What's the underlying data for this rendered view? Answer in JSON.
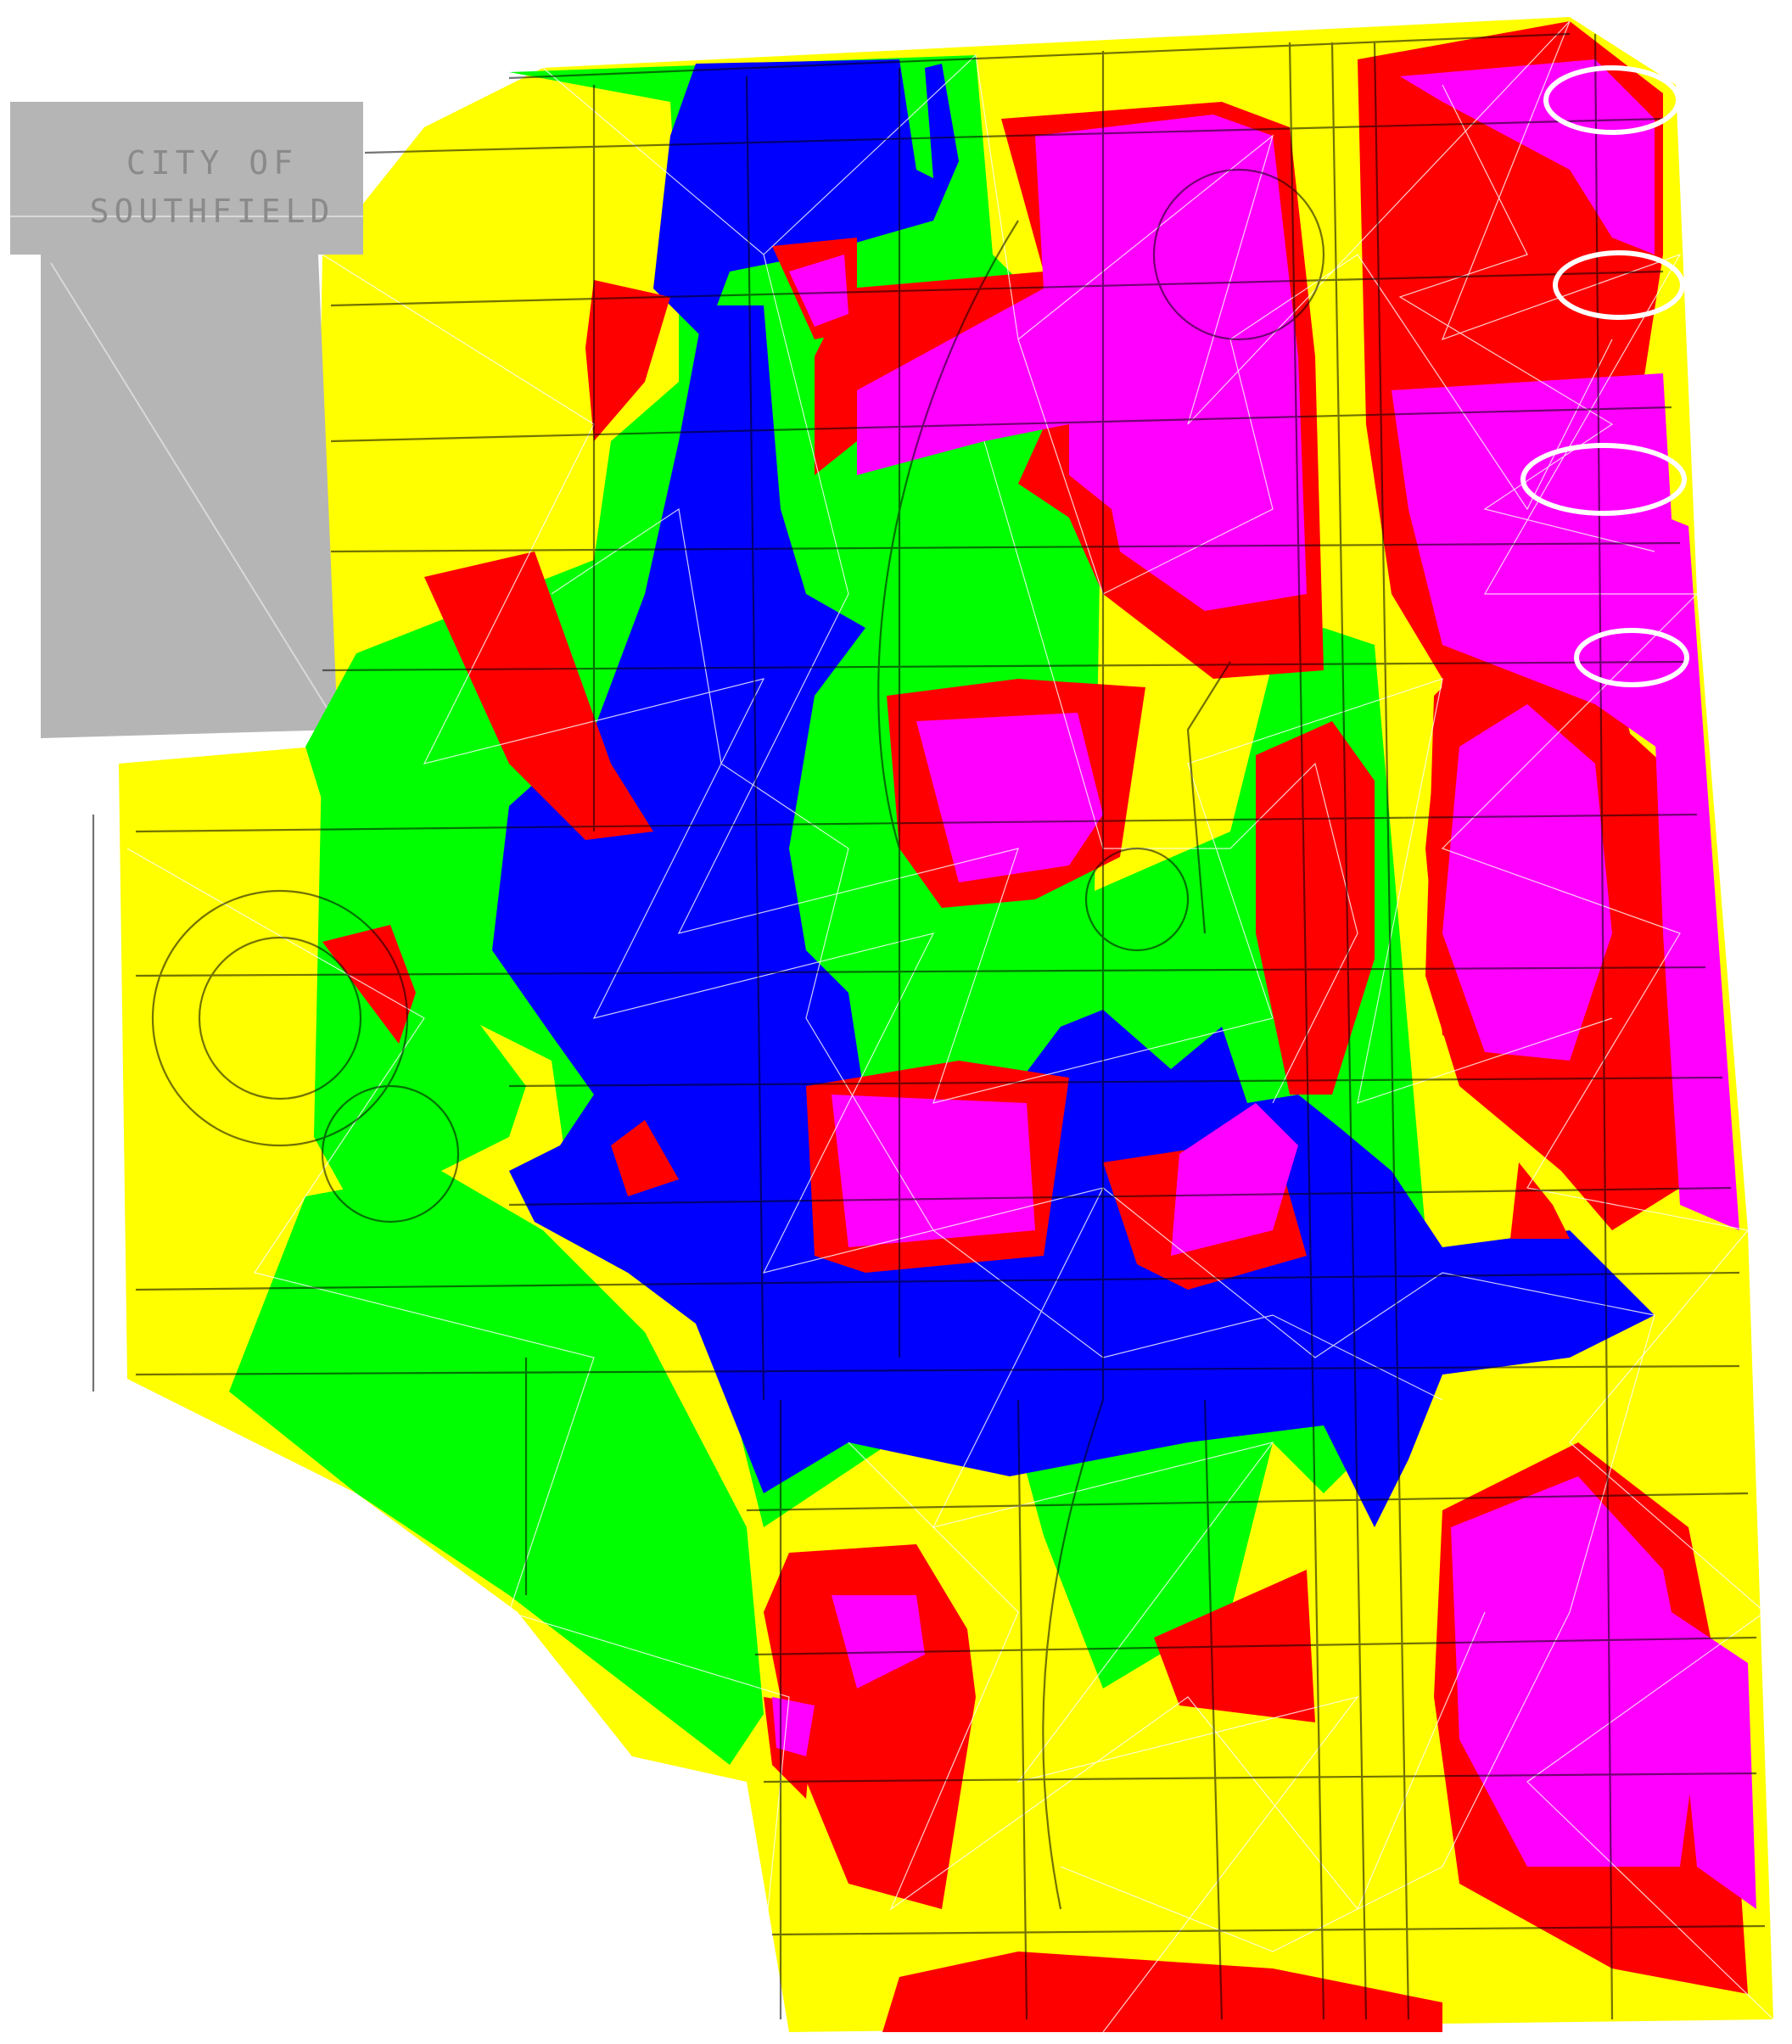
{
  "map": {
    "inset_label_line1": "CITY OF",
    "inset_label_line2": "SOUTHFIELD",
    "colors": {
      "background": "#ffffff",
      "inset": "#b5b5b5",
      "yellow": "#ffff00",
      "green": "#00ff00",
      "blue": "#0000ff",
      "red": "#ff0000",
      "magenta": "#ff00ff",
      "mesh": "#ffffff",
      "streets": "#000000",
      "nodes": "#2b2bff",
      "highlight": "#ffffff"
    },
    "highlight_marker_count": 4
  }
}
